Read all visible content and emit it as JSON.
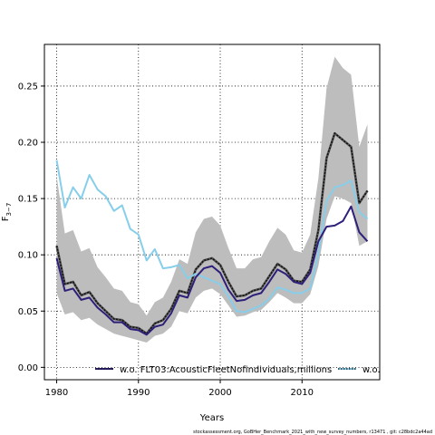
{
  "chart_data": {
    "type": "line",
    "xlabel": "Years",
    "ylabel": "F3-7",
    "ylabel_main": "F",
    "ylabel_sub": "3−7",
    "xlim": [
      1978.5,
      2019.5
    ],
    "ylim": [
      -0.011,
      0.287
    ],
    "x_ticks": [
      1980,
      1990,
      2000,
      2010
    ],
    "y_ticks": [
      0.0,
      0.05,
      0.1,
      0.15,
      0.2,
      0.25
    ],
    "x_tick_labels": [
      "1980",
      "1990",
      "2000",
      "2010"
    ],
    "y_tick_labels": [
      "0.00",
      "0.05",
      "0.10",
      "0.15",
      "0.20",
      "0.25"
    ],
    "grid": true,
    "legend_position": "lower-center",
    "x": [
      1980,
      1981,
      1982,
      1983,
      1984,
      1985,
      1986,
      1987,
      1988,
      1989,
      1990,
      1991,
      1992,
      1993,
      1994,
      1995,
      1996,
      1997,
      1998,
      1999,
      2000,
      2001,
      2002,
      2003,
      2004,
      2005,
      2006,
      2007,
      2008,
      2009,
      2010,
      2011,
      2012,
      2013,
      2014,
      2015,
      2016,
      2017,
      2018
    ],
    "series": [
      {
        "name": "w.o. FLT03:AcousticFleetNofindividuals,millions",
        "color": "#2e1f7a",
        "values": [
          0.097,
          0.068,
          0.07,
          0.06,
          0.062,
          0.053,
          0.047,
          0.04,
          0.04,
          0.034,
          0.033,
          0.029,
          0.036,
          0.038,
          0.048,
          0.064,
          0.062,
          0.08,
          0.088,
          0.09,
          0.084,
          0.069,
          0.059,
          0.06,
          0.064,
          0.066,
          0.076,
          0.087,
          0.083,
          0.076,
          0.074,
          0.084,
          0.112,
          0.125,
          0.126,
          0.13,
          0.143,
          0.12,
          0.112
        ]
      },
      {
        "name": "w.o.",
        "color": "#87ceeb",
        "values": [
          0.184,
          0.142,
          0.16,
          0.15,
          0.171,
          0.158,
          0.152,
          0.139,
          0.144,
          0.123,
          0.118,
          0.095,
          0.105,
          0.088,
          0.089,
          0.091,
          0.079,
          0.083,
          0.08,
          0.077,
          0.074,
          0.063,
          0.05,
          0.049,
          0.052,
          0.055,
          0.061,
          0.071,
          0.069,
          0.066,
          0.066,
          0.07,
          0.101,
          0.148,
          0.16,
          0.162,
          0.166,
          0.138,
          0.132
        ]
      },
      {
        "name": "",
        "color": "#111111",
        "style": "dashed",
        "values": [
          0.108,
          0.074,
          0.076,
          0.064,
          0.067,
          0.057,
          0.05,
          0.043,
          0.042,
          0.036,
          0.035,
          0.03,
          0.039,
          0.042,
          0.052,
          0.068,
          0.066,
          0.087,
          0.095,
          0.097,
          0.091,
          0.076,
          0.063,
          0.064,
          0.068,
          0.07,
          0.081,
          0.092,
          0.087,
          0.077,
          0.076,
          0.087,
          0.122,
          0.186,
          0.208,
          0.202,
          0.196,
          0.146,
          0.157
        ]
      }
    ],
    "band": {
      "color": "#bdbdbd",
      "lower": [
        0.066,
        0.047,
        0.049,
        0.042,
        0.044,
        0.038,
        0.034,
        0.03,
        0.028,
        0.026,
        0.024,
        0.022,
        0.028,
        0.03,
        0.036,
        0.05,
        0.048,
        0.062,
        0.068,
        0.07,
        0.065,
        0.055,
        0.045,
        0.046,
        0.049,
        0.051,
        0.058,
        0.066,
        0.062,
        0.057,
        0.057,
        0.065,
        0.09,
        0.132,
        0.152,
        0.15,
        0.146,
        0.108,
        0.112
      ],
      "upper": [
        0.17,
        0.119,
        0.122,
        0.103,
        0.106,
        0.089,
        0.08,
        0.07,
        0.068,
        0.058,
        0.056,
        0.046,
        0.058,
        0.062,
        0.076,
        0.096,
        0.092,
        0.12,
        0.132,
        0.134,
        0.126,
        0.106,
        0.088,
        0.088,
        0.096,
        0.098,
        0.112,
        0.124,
        0.118,
        0.104,
        0.102,
        0.118,
        0.168,
        0.248,
        0.276,
        0.266,
        0.26,
        0.196,
        0.216
      ]
    }
  },
  "footnote": "stockassessment.org, GoBHer_Benchmark_2021_with_new_survey_numbers, r13471 , git: c28bdc2a44ad"
}
